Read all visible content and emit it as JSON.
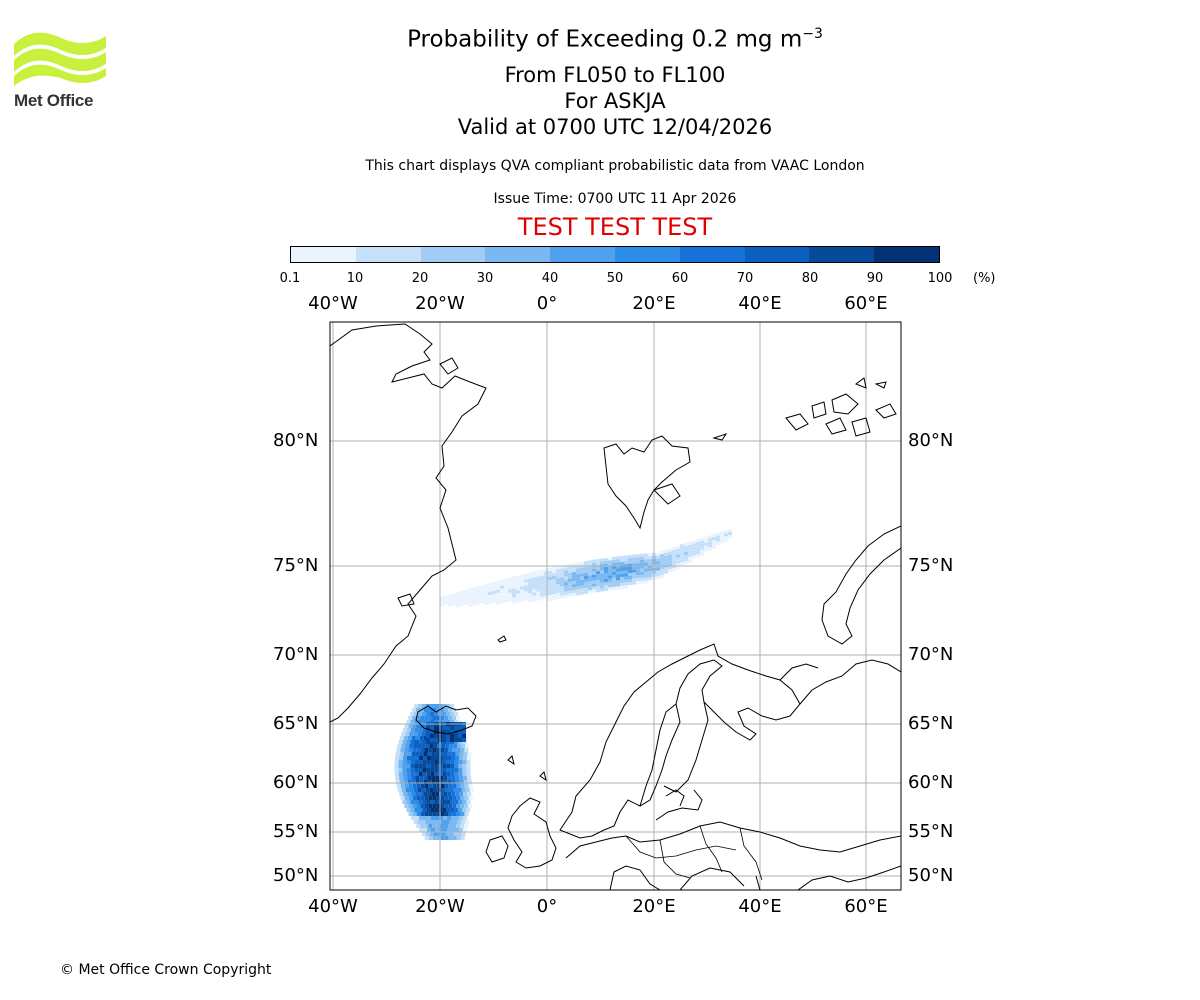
{
  "logo": {
    "text": "Met Office",
    "accent": "#c8f03c"
  },
  "title": {
    "line1": "Probability of Exceeding 0.2 mg m",
    "line1_sup": "−3",
    "line2": "From FL050 to FL100",
    "line3": "For ASKJA",
    "line4": "Valid at 0700 UTC 12/04/2026"
  },
  "note": "This chart displays QVA compliant probabilistic data from VAAC London",
  "issue_time": "Issue Time: 0700 UTC 11 Apr 2026",
  "test_banner": "TEST TEST TEST",
  "colorbar": {
    "ticks": [
      "0.1",
      "10",
      "20",
      "30",
      "40",
      "50",
      "60",
      "70",
      "80",
      "90",
      "100"
    ],
    "unit": "(%)",
    "colors": [
      "#eaf4ff",
      "#c6e0fa",
      "#a3ccf5",
      "#7ab8f1",
      "#4fa0ed",
      "#2b8de8",
      "#1672d8",
      "#0c5fbf",
      "#064a9a",
      "#033173"
    ]
  },
  "map": {
    "lon_labels": [
      "40°W",
      "20°W",
      "0°",
      "20°E",
      "40°E",
      "60°E"
    ],
    "lat_labels": [
      "80°N",
      "75°N",
      "70°N",
      "65°N",
      "60°N",
      "55°N",
      "50°N"
    ],
    "grid_color": "#b0b0b0",
    "ash_regions": [
      {
        "name": "iceland-plume",
        "peak_probability": 100
      },
      {
        "name": "svalbard-band",
        "peak_probability": 50
      }
    ]
  },
  "copyright": "© Met Office Crown Copyright"
}
